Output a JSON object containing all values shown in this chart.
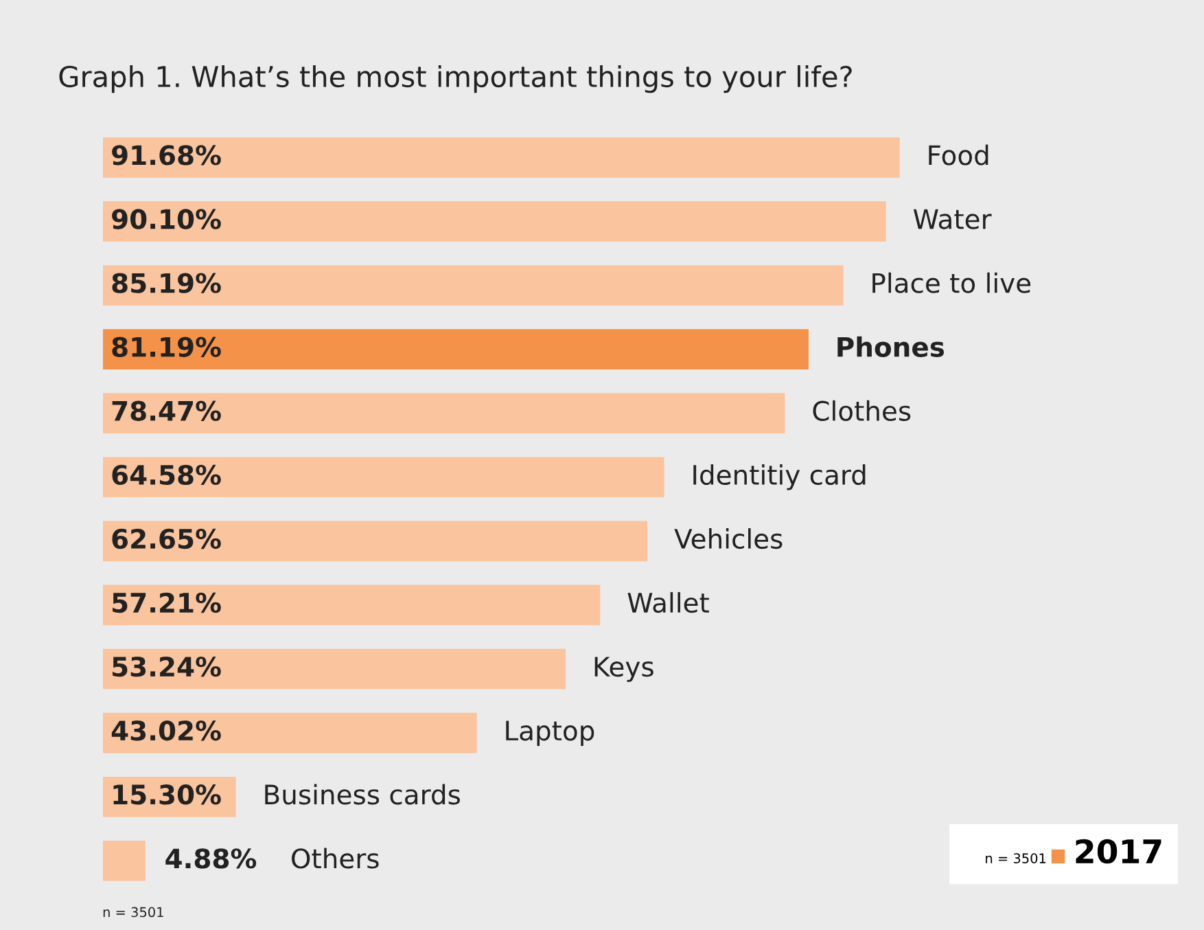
{
  "chart_data": {
    "type": "bar",
    "orientation": "horizontal",
    "title": "Graph 1. What’s the most important things to your life?",
    "categories": [
      "Food",
      "Water",
      "Place to live",
      "Phones",
      "Clothes",
      "Identitiy card",
      "Vehicles",
      "Wallet",
      "Keys",
      "Laptop",
      "Business cards",
      "Others"
    ],
    "series": [
      {
        "name": "2017",
        "color": "#f5924a",
        "values": [
          91.68,
          90.1,
          85.19,
          81.19,
          78.47,
          64.58,
          62.65,
          57.21,
          53.24,
          43.02,
          15.3,
          4.88
        ],
        "value_labels": [
          "91.68%",
          "90.10%",
          "85.19%",
          "81.19%",
          "78.47%",
          "64.58%",
          "62.65%",
          "57.21%",
          "53.24%",
          "43.02%",
          "15.30%",
          "4.88%"
        ],
        "colors": [
          "#f9c49e",
          "#f9c49e",
          "#f9c49e",
          "#f5924a",
          "#f9c49e",
          "#f9c49e",
          "#f9c49e",
          "#f9c49e",
          "#f9c49e",
          "#f9c49e",
          "#f9c49e",
          "#f9c49e"
        ]
      }
    ],
    "legend": "bottom right",
    "legend_title": "n = 3501",
    "annotations": [
      "n = 3501"
    ]
  }
}
